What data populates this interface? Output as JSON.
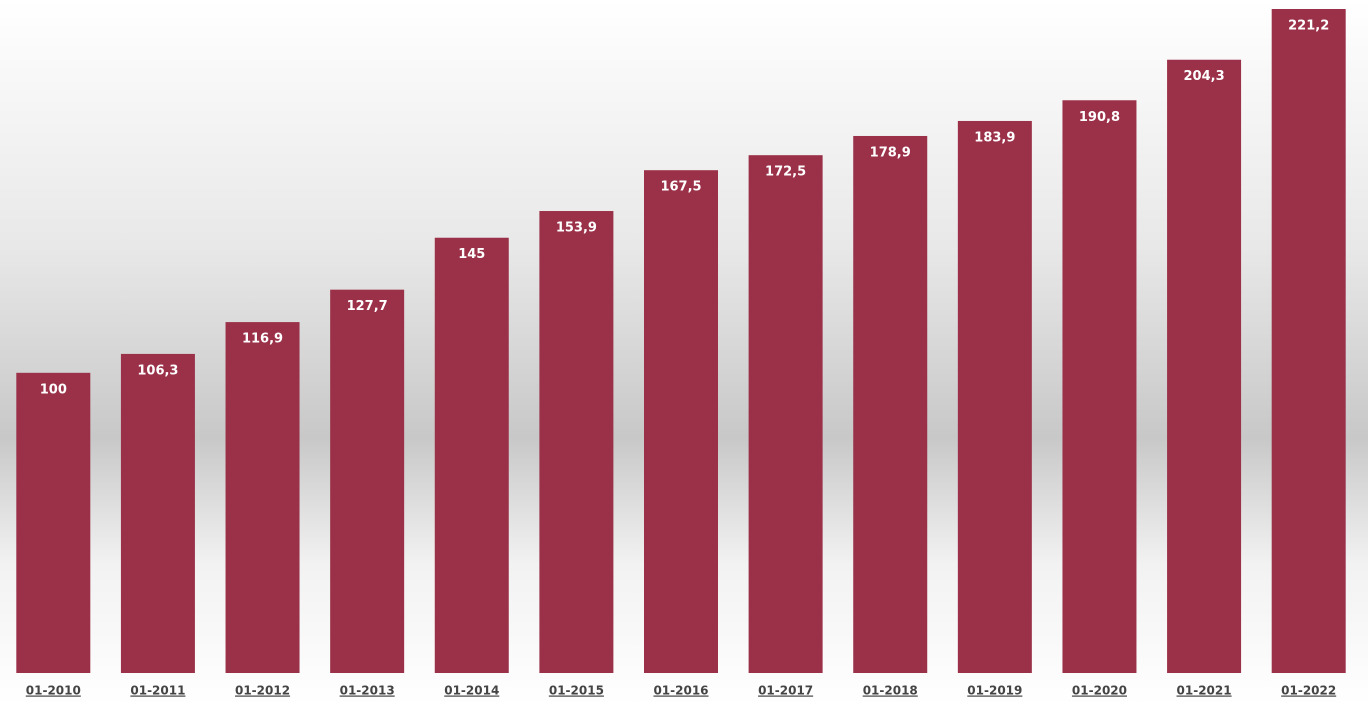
{
  "chart_data": {
    "type": "bar",
    "categories": [
      "01-2010",
      "01-2011",
      "01-2012",
      "01-2013",
      "01-2014",
      "01-2015",
      "01-2016",
      "01-2017",
      "01-2018",
      "01-2019",
      "01-2020",
      "01-2021",
      "01-2022"
    ],
    "values": [
      100,
      106.3,
      116.9,
      127.7,
      145,
      153.9,
      167.5,
      172.5,
      178.9,
      183.9,
      190.8,
      204.3,
      221.2
    ],
    "value_labels": [
      "100",
      "106,3",
      "116,9",
      "127,7",
      "145",
      "153,9",
      "167,5",
      "172,5",
      "178,9",
      "183,9",
      "190,8",
      "204,3",
      "221,2"
    ],
    "color": "#9b3149"
  }
}
